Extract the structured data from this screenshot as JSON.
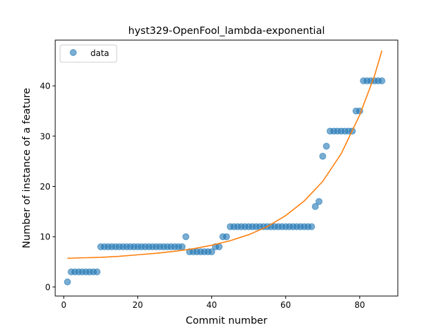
{
  "chart_data": {
    "type": "scatter",
    "title": "hyst329-OpenFool_lambda-exponential",
    "xlabel": "Commit number",
    "ylabel": "Number of instance of a feature",
    "xlim": [
      -2.3,
      90.3
    ],
    "ylim": [
      -1.8,
      49.1
    ],
    "xticks": [
      0,
      20,
      40,
      60,
      80
    ],
    "yticks": [
      0,
      10,
      20,
      30,
      40
    ],
    "xtick_labels": [
      "0",
      "20",
      "40",
      "60",
      "80"
    ],
    "ytick_labels": [
      "0",
      "10",
      "20",
      "30",
      "40"
    ],
    "grid": false,
    "legend": {
      "position": "top-left",
      "entries": [
        "data"
      ]
    },
    "series": [
      {
        "name": "data",
        "kind": "points",
        "color": "#1f77b4",
        "opacity": 0.6,
        "x": [
          1,
          2,
          3,
          4,
          5,
          6,
          7,
          8,
          9,
          10,
          11,
          12,
          13,
          14,
          15,
          16,
          17,
          18,
          19,
          20,
          21,
          22,
          23,
          24,
          25,
          26,
          27,
          28,
          29,
          30,
          31,
          32,
          33,
          34,
          35,
          36,
          37,
          38,
          39,
          40,
          41,
          42,
          43,
          44,
          45,
          46,
          47,
          48,
          49,
          50,
          51,
          52,
          53,
          54,
          55,
          56,
          57,
          58,
          59,
          60,
          61,
          62,
          63,
          64,
          65,
          66,
          67,
          68,
          69,
          70,
          71,
          72,
          73,
          74,
          75,
          76,
          77,
          78,
          79,
          80,
          81,
          82,
          83,
          84,
          85,
          86
        ],
        "y": [
          1,
          3,
          3,
          3,
          3,
          3,
          3,
          3,
          3,
          8,
          8,
          8,
          8,
          8,
          8,
          8,
          8,
          8,
          8,
          8,
          8,
          8,
          8,
          8,
          8,
          8,
          8,
          8,
          8,
          8,
          8,
          8,
          10,
          7,
          7,
          7,
          7,
          7,
          7,
          7,
          8,
          8,
          10,
          10,
          12,
          12,
          12,
          12,
          12,
          12,
          12,
          12,
          12,
          12,
          12,
          12,
          12,
          12,
          12,
          12,
          12,
          12,
          12,
          12,
          12,
          12,
          12,
          16,
          17,
          26,
          28,
          31,
          31,
          31,
          31,
          31,
          31,
          31,
          35,
          35,
          41,
          41,
          41,
          41,
          41,
          41
        ]
      },
      {
        "kind": "fit-line",
        "color": "#ff7f0e",
        "x": [
          1,
          5,
          10,
          15,
          20,
          25,
          30,
          35,
          40,
          45,
          50,
          55,
          60,
          65,
          70,
          75,
          80,
          84,
          86
        ],
        "y": [
          5.7,
          5.8,
          5.9,
          6.1,
          6.4,
          6.7,
          7.1,
          7.6,
          8.3,
          9.2,
          10.4,
          12.0,
          14.2,
          17.1,
          21.0,
          26.5,
          34.2,
          42.0,
          47.0
        ]
      }
    ]
  }
}
